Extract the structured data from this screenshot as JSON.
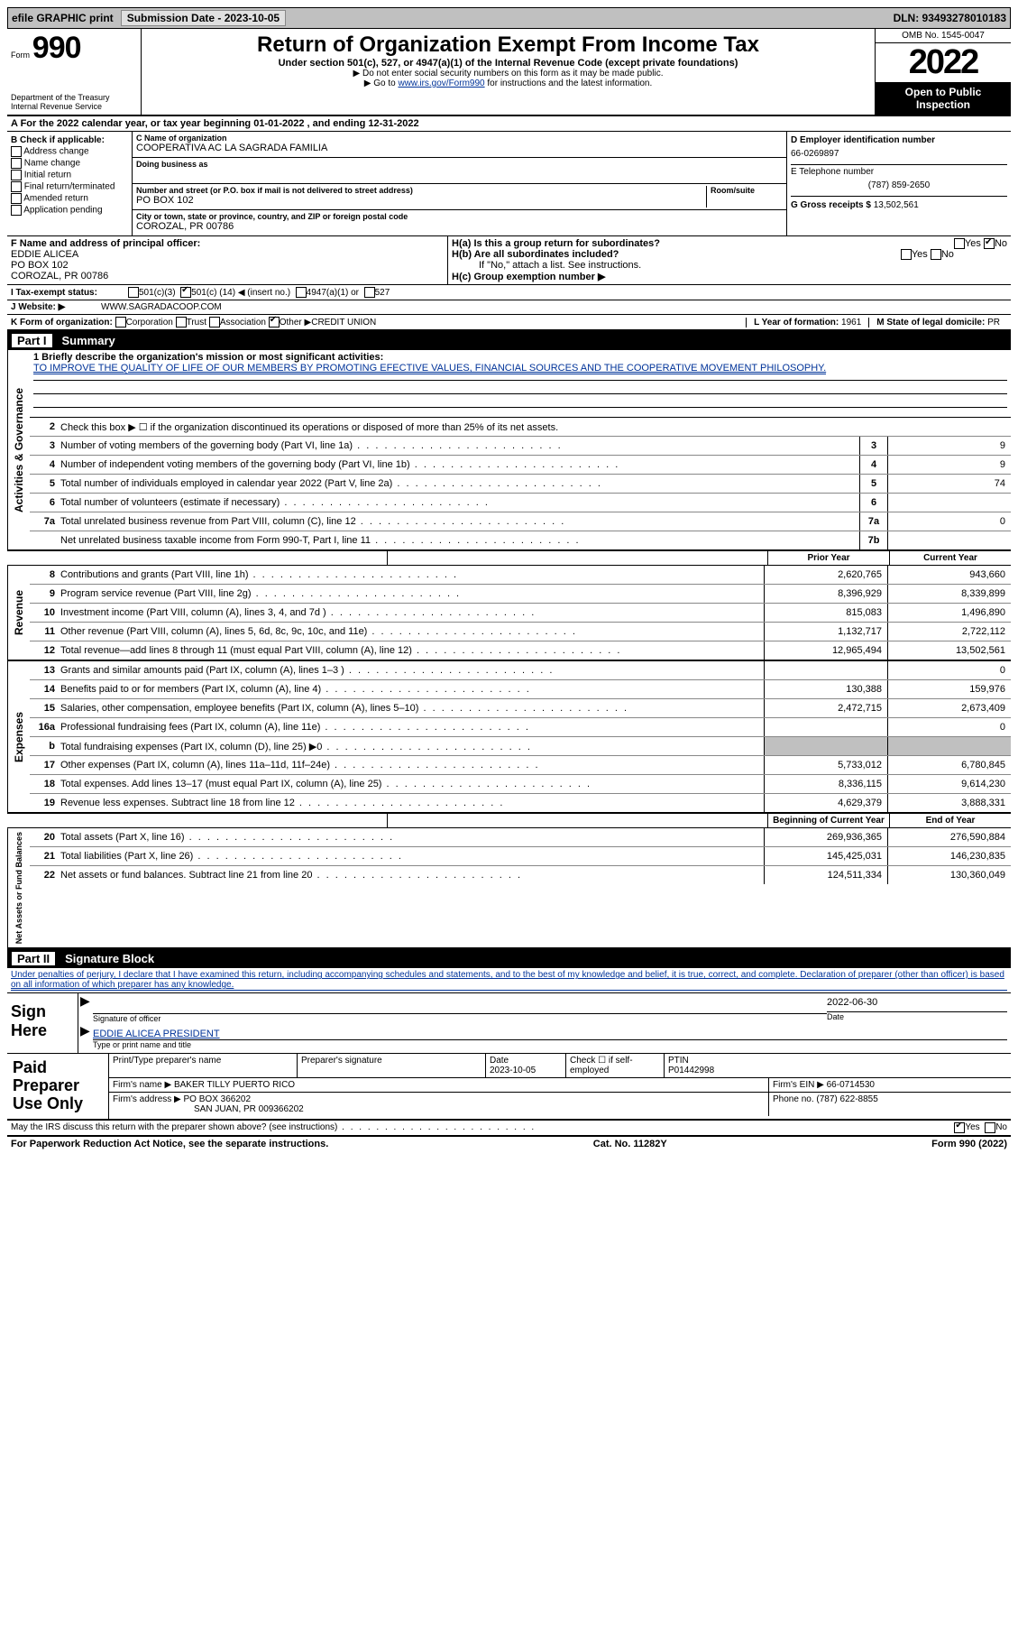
{
  "topbar": {
    "efile": "efile GRAPHIC print",
    "submission_label": "Submission Date - 2023-10-05",
    "dln_label": "DLN: 93493278010183"
  },
  "header": {
    "form_word": "Form",
    "form_num": "990",
    "dept": "Department of the Treasury",
    "irs": "Internal Revenue Service",
    "title": "Return of Organization Exempt From Income Tax",
    "subtitle": "Under section 501(c), 527, or 4947(a)(1) of the Internal Revenue Code (except private foundations)",
    "note1": "▶ Do not enter social security numbers on this form as it may be made public.",
    "note2_pre": "▶ Go to ",
    "note2_link": "www.irs.gov/Form990",
    "note2_post": " for instructions and the latest information.",
    "omb": "OMB No. 1545-0047",
    "year": "2022",
    "open": "Open to Public Inspection"
  },
  "row_a": "A  For the 2022 calendar year, or tax year beginning 01-01-2022    , and ending 12-31-2022",
  "section_b": {
    "b_label": "B Check if applicable:",
    "opts": [
      "Address change",
      "Name change",
      "Initial return",
      "Final return/terminated",
      "Amended return",
      "Application pending"
    ],
    "c_name_lbl": "C Name of organization",
    "c_name": "COOPERATIVA AC LA SAGRADA FAMILIA",
    "dba_lbl": "Doing business as",
    "addr_lbl": "Number and street (or P.O. box if mail is not delivered to street address)",
    "addr": "PO BOX 102",
    "room_lbl": "Room/suite",
    "city_lbl": "City or town, state or province, country, and ZIP or foreign postal code",
    "city": "COROZAL, PR  00786",
    "d_ein_lbl": "D Employer identification number",
    "d_ein": "66-0269897",
    "e_tel_lbl": "E Telephone number",
    "e_tel": "(787) 859-2650",
    "g_lbl": "G Gross receipts $ ",
    "g_val": "13,502,561"
  },
  "section_fh": {
    "f_lbl": "F  Name and address of principal officer:",
    "f_name": "EDDIE ALICEA",
    "f_addr1": "PO BOX 102",
    "f_addr2": "COROZAL, PR  00786",
    "ha_lbl": "H(a)  Is this a group return for subordinates?",
    "hb_lbl": "H(b)  Are all subordinates included?",
    "hb_note": "If \"No,\" attach a list. See instructions.",
    "hc_lbl": "H(c)  Group exemption number ▶",
    "yes": "Yes",
    "no": "No"
  },
  "row_i": {
    "lbl": "I   Tax-exempt status:",
    "o1": "501(c)(3)",
    "o2_pre": "501(c) (",
    "o2_num": "14",
    "o2_post": ") ◀ (insert no.)",
    "o3": "4947(a)(1) or",
    "o4": "527"
  },
  "row_j": {
    "lbl": "J   Website: ▶",
    "val": "WWW.SAGRADACOOP.COM"
  },
  "row_k": {
    "lbl": "K Form of organization:",
    "opts": [
      "Corporation",
      "Trust",
      "Association"
    ],
    "other_lbl": "Other ▶",
    "other_val": "CREDIT UNION",
    "l_lbl": "L Year of formation: ",
    "l_val": "1961",
    "m_lbl": "M State of legal domicile: ",
    "m_val": "PR"
  },
  "part1": {
    "num": "Part I",
    "title": "Summary"
  },
  "activities": {
    "label": "Activities & Governance",
    "l1_lbl": "1   Briefly describe the organization's mission or most significant activities:",
    "l1_txt": "TO IMPROVE THE QUALITY OF LIFE OF OUR MEMBERS BY PROMOTING EFECTIVE VALUES, FINANCIAL SOURCES AND THE COOPERATIVE MOVEMENT PHILOSOPHY.",
    "l2": "Check this box ▶ ☐  if the organization discontinued its operations or disposed of more than 25% of its net assets.",
    "rows": [
      {
        "n": "3",
        "t": "Number of voting members of the governing body (Part VI, line 1a)",
        "b": "3",
        "v": "9"
      },
      {
        "n": "4",
        "t": "Number of independent voting members of the governing body (Part VI, line 1b)",
        "b": "4",
        "v": "9"
      },
      {
        "n": "5",
        "t": "Total number of individuals employed in calendar year 2022 (Part V, line 2a)",
        "b": "5",
        "v": "74"
      },
      {
        "n": "6",
        "t": "Total number of volunteers (estimate if necessary)",
        "b": "6",
        "v": ""
      },
      {
        "n": "7a",
        "t": "Total unrelated business revenue from Part VIII, column (C), line 12",
        "b": "7a",
        "v": "0"
      },
      {
        "n": "",
        "t": "Net unrelated business taxable income from Form 990-T, Part I, line 11",
        "b": "7b",
        "v": ""
      }
    ]
  },
  "colheaders": {
    "prior": "Prior Year",
    "current": "Current Year",
    "begin": "Beginning of Current Year",
    "end": "End of Year"
  },
  "revenue": {
    "label": "Revenue",
    "rows": [
      {
        "n": "8",
        "t": "Contributions and grants (Part VIII, line 1h)",
        "p": "2,620,765",
        "c": "943,660"
      },
      {
        "n": "9",
        "t": "Program service revenue (Part VIII, line 2g)",
        "p": "8,396,929",
        "c": "8,339,899"
      },
      {
        "n": "10",
        "t": "Investment income (Part VIII, column (A), lines 3, 4, and 7d )",
        "p": "815,083",
        "c": "1,496,890"
      },
      {
        "n": "11",
        "t": "Other revenue (Part VIII, column (A), lines 5, 6d, 8c, 9c, 10c, and 11e)",
        "p": "1,132,717",
        "c": "2,722,112"
      },
      {
        "n": "12",
        "t": "Total revenue—add lines 8 through 11 (must equal Part VIII, column (A), line 12)",
        "p": "12,965,494",
        "c": "13,502,561"
      }
    ]
  },
  "expenses": {
    "label": "Expenses",
    "rows": [
      {
        "n": "13",
        "t": "Grants and similar amounts paid (Part IX, column (A), lines 1–3 )",
        "p": "",
        "c": "0"
      },
      {
        "n": "14",
        "t": "Benefits paid to or for members (Part IX, column (A), line 4)",
        "p": "130,388",
        "c": "159,976"
      },
      {
        "n": "15",
        "t": "Salaries, other compensation, employee benefits (Part IX, column (A), lines 5–10)",
        "p": "2,472,715",
        "c": "2,673,409"
      },
      {
        "n": "16a",
        "t": "Professional fundraising fees (Part IX, column (A), line 11e)",
        "p": "",
        "c": "0"
      },
      {
        "n": "b",
        "t": "Total fundraising expenses (Part IX, column (D), line 25) ▶0",
        "p": "SHADE",
        "c": "SHADE"
      },
      {
        "n": "17",
        "t": "Other expenses (Part IX, column (A), lines 11a–11d, 11f–24e)",
        "p": "5,733,012",
        "c": "6,780,845"
      },
      {
        "n": "18",
        "t": "Total expenses. Add lines 13–17 (must equal Part IX, column (A), line 25)",
        "p": "8,336,115",
        "c": "9,614,230"
      },
      {
        "n": "19",
        "t": "Revenue less expenses. Subtract line 18 from line 12",
        "p": "4,629,379",
        "c": "3,888,331"
      }
    ]
  },
  "netassets": {
    "label": "Net Assets or Fund Balances",
    "rows": [
      {
        "n": "20",
        "t": "Total assets (Part X, line 16)",
        "p": "269,936,365",
        "c": "276,590,884"
      },
      {
        "n": "21",
        "t": "Total liabilities (Part X, line 26)",
        "p": "145,425,031",
        "c": "146,230,835"
      },
      {
        "n": "22",
        "t": "Net assets or fund balances. Subtract line 21 from line 20",
        "p": "124,511,334",
        "c": "130,360,049"
      }
    ]
  },
  "part2": {
    "num": "Part II",
    "title": "Signature Block"
  },
  "penalties": "Under penalties of perjury, I declare that I have examined this return, including accompanying schedules and statements, and to the best of my knowledge and belief, it is true, correct, and complete. Declaration of preparer (other than officer) is based on all information of which preparer has any knowledge.",
  "sign": {
    "label": "Sign Here",
    "sig_lbl": "Signature of officer",
    "date": "2022-06-30",
    "date_lbl": "Date",
    "name": "EDDIE ALICEA  PRESIDENT",
    "name_lbl": "Type or print name and title"
  },
  "preparer": {
    "label": "Paid Preparer Use Only",
    "print_lbl": "Print/Type preparer's name",
    "sig_lbl": "Preparer's signature",
    "date_lbl": "Date",
    "date": "2023-10-05",
    "check_lbl": "Check ☐ if self-employed",
    "ptin_lbl": "PTIN",
    "ptin": "P01442998",
    "firm_name_lbl": "Firm's name     ▶",
    "firm_name": "BAKER TILLY PUERTO RICO",
    "firm_ein_lbl": "Firm's EIN ▶",
    "firm_ein": "66-0714530",
    "firm_addr_lbl": "Firm's address ▶",
    "firm_addr1": "PO BOX 366202",
    "firm_addr2": "SAN JUAN, PR  009366202",
    "phone_lbl": "Phone no.",
    "phone": "(787) 622-8855"
  },
  "discuss": {
    "txt": "May the IRS discuss this return with the preparer shown above? (see instructions)",
    "yes": "Yes",
    "no": "No"
  },
  "footer": {
    "left": "For Paperwork Reduction Act Notice, see the separate instructions.",
    "mid": "Cat. No. 11282Y",
    "right": "Form 990 (2022)"
  }
}
